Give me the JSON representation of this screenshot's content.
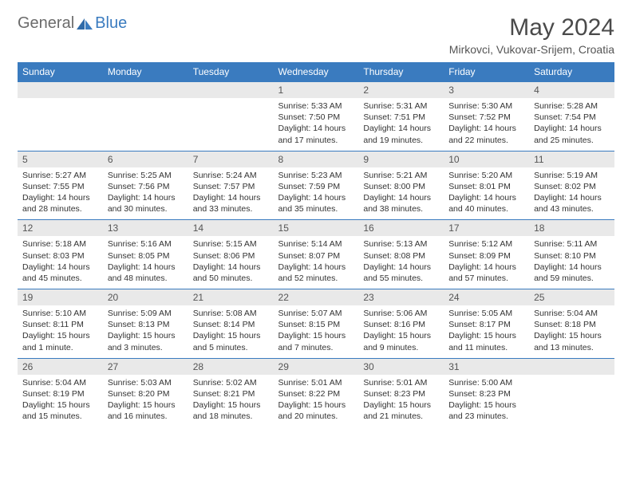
{
  "brand": {
    "general": "General",
    "blue": "Blue"
  },
  "title": "May 2024",
  "location": "Mirkovci, Vukovar-Srijem, Croatia",
  "colors": {
    "header_bg": "#3a7bbf",
    "header_text": "#ffffff",
    "daynum_bg": "#e9e9e9",
    "border": "#3a7bbf",
    "text": "#333333",
    "title_text": "#4a4a4a"
  },
  "weekdays": [
    "Sunday",
    "Monday",
    "Tuesday",
    "Wednesday",
    "Thursday",
    "Friday",
    "Saturday"
  ],
  "weeks": [
    [
      null,
      null,
      null,
      {
        "n": "1",
        "sr": "5:33 AM",
        "ss": "7:50 PM",
        "dl": "14 hours and 17 minutes."
      },
      {
        "n": "2",
        "sr": "5:31 AM",
        "ss": "7:51 PM",
        "dl": "14 hours and 19 minutes."
      },
      {
        "n": "3",
        "sr": "5:30 AM",
        "ss": "7:52 PM",
        "dl": "14 hours and 22 minutes."
      },
      {
        "n": "4",
        "sr": "5:28 AM",
        "ss": "7:54 PM",
        "dl": "14 hours and 25 minutes."
      }
    ],
    [
      {
        "n": "5",
        "sr": "5:27 AM",
        "ss": "7:55 PM",
        "dl": "14 hours and 28 minutes."
      },
      {
        "n": "6",
        "sr": "5:25 AM",
        "ss": "7:56 PM",
        "dl": "14 hours and 30 minutes."
      },
      {
        "n": "7",
        "sr": "5:24 AM",
        "ss": "7:57 PM",
        "dl": "14 hours and 33 minutes."
      },
      {
        "n": "8",
        "sr": "5:23 AM",
        "ss": "7:59 PM",
        "dl": "14 hours and 35 minutes."
      },
      {
        "n": "9",
        "sr": "5:21 AM",
        "ss": "8:00 PM",
        "dl": "14 hours and 38 minutes."
      },
      {
        "n": "10",
        "sr": "5:20 AM",
        "ss": "8:01 PM",
        "dl": "14 hours and 40 minutes."
      },
      {
        "n": "11",
        "sr": "5:19 AM",
        "ss": "8:02 PM",
        "dl": "14 hours and 43 minutes."
      }
    ],
    [
      {
        "n": "12",
        "sr": "5:18 AM",
        "ss": "8:03 PM",
        "dl": "14 hours and 45 minutes."
      },
      {
        "n": "13",
        "sr": "5:16 AM",
        "ss": "8:05 PM",
        "dl": "14 hours and 48 minutes."
      },
      {
        "n": "14",
        "sr": "5:15 AM",
        "ss": "8:06 PM",
        "dl": "14 hours and 50 minutes."
      },
      {
        "n": "15",
        "sr": "5:14 AM",
        "ss": "8:07 PM",
        "dl": "14 hours and 52 minutes."
      },
      {
        "n": "16",
        "sr": "5:13 AM",
        "ss": "8:08 PM",
        "dl": "14 hours and 55 minutes."
      },
      {
        "n": "17",
        "sr": "5:12 AM",
        "ss": "8:09 PM",
        "dl": "14 hours and 57 minutes."
      },
      {
        "n": "18",
        "sr": "5:11 AM",
        "ss": "8:10 PM",
        "dl": "14 hours and 59 minutes."
      }
    ],
    [
      {
        "n": "19",
        "sr": "5:10 AM",
        "ss": "8:11 PM",
        "dl": "15 hours and 1 minute."
      },
      {
        "n": "20",
        "sr": "5:09 AM",
        "ss": "8:13 PM",
        "dl": "15 hours and 3 minutes."
      },
      {
        "n": "21",
        "sr": "5:08 AM",
        "ss": "8:14 PM",
        "dl": "15 hours and 5 minutes."
      },
      {
        "n": "22",
        "sr": "5:07 AM",
        "ss": "8:15 PM",
        "dl": "15 hours and 7 minutes."
      },
      {
        "n": "23",
        "sr": "5:06 AM",
        "ss": "8:16 PM",
        "dl": "15 hours and 9 minutes."
      },
      {
        "n": "24",
        "sr": "5:05 AM",
        "ss": "8:17 PM",
        "dl": "15 hours and 11 minutes."
      },
      {
        "n": "25",
        "sr": "5:04 AM",
        "ss": "8:18 PM",
        "dl": "15 hours and 13 minutes."
      }
    ],
    [
      {
        "n": "26",
        "sr": "5:04 AM",
        "ss": "8:19 PM",
        "dl": "15 hours and 15 minutes."
      },
      {
        "n": "27",
        "sr": "5:03 AM",
        "ss": "8:20 PM",
        "dl": "15 hours and 16 minutes."
      },
      {
        "n": "28",
        "sr": "5:02 AM",
        "ss": "8:21 PM",
        "dl": "15 hours and 18 minutes."
      },
      {
        "n": "29",
        "sr": "5:01 AM",
        "ss": "8:22 PM",
        "dl": "15 hours and 20 minutes."
      },
      {
        "n": "30",
        "sr": "5:01 AM",
        "ss": "8:23 PM",
        "dl": "15 hours and 21 minutes."
      },
      {
        "n": "31",
        "sr": "5:00 AM",
        "ss": "8:23 PM",
        "dl": "15 hours and 23 minutes."
      },
      null
    ]
  ],
  "labels": {
    "sunrise": "Sunrise:",
    "sunset": "Sunset:",
    "daylight": "Daylight:"
  }
}
